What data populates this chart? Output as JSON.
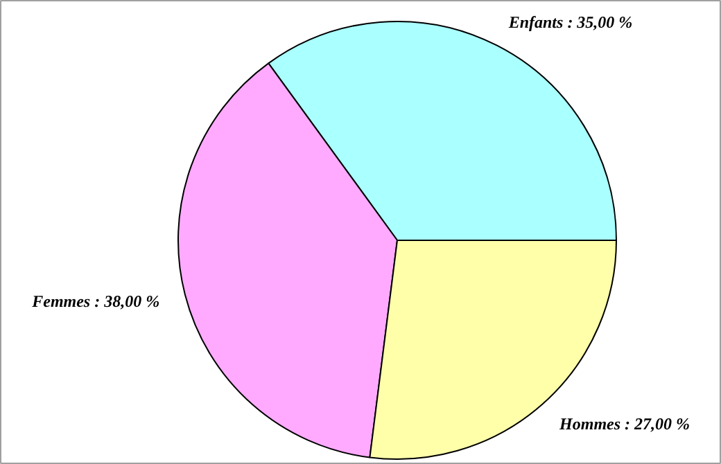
{
  "chart_data": {
    "type": "pie",
    "categories": [
      "Enfants",
      "Femmes",
      "Hommes"
    ],
    "values": [
      35,
      38,
      27
    ],
    "colors": [
      "#aaffff",
      "#ffaaff",
      "#ffffaa"
    ],
    "value_labels": [
      "35,00 %",
      "38,00 %",
      "27,00 %"
    ]
  }
}
